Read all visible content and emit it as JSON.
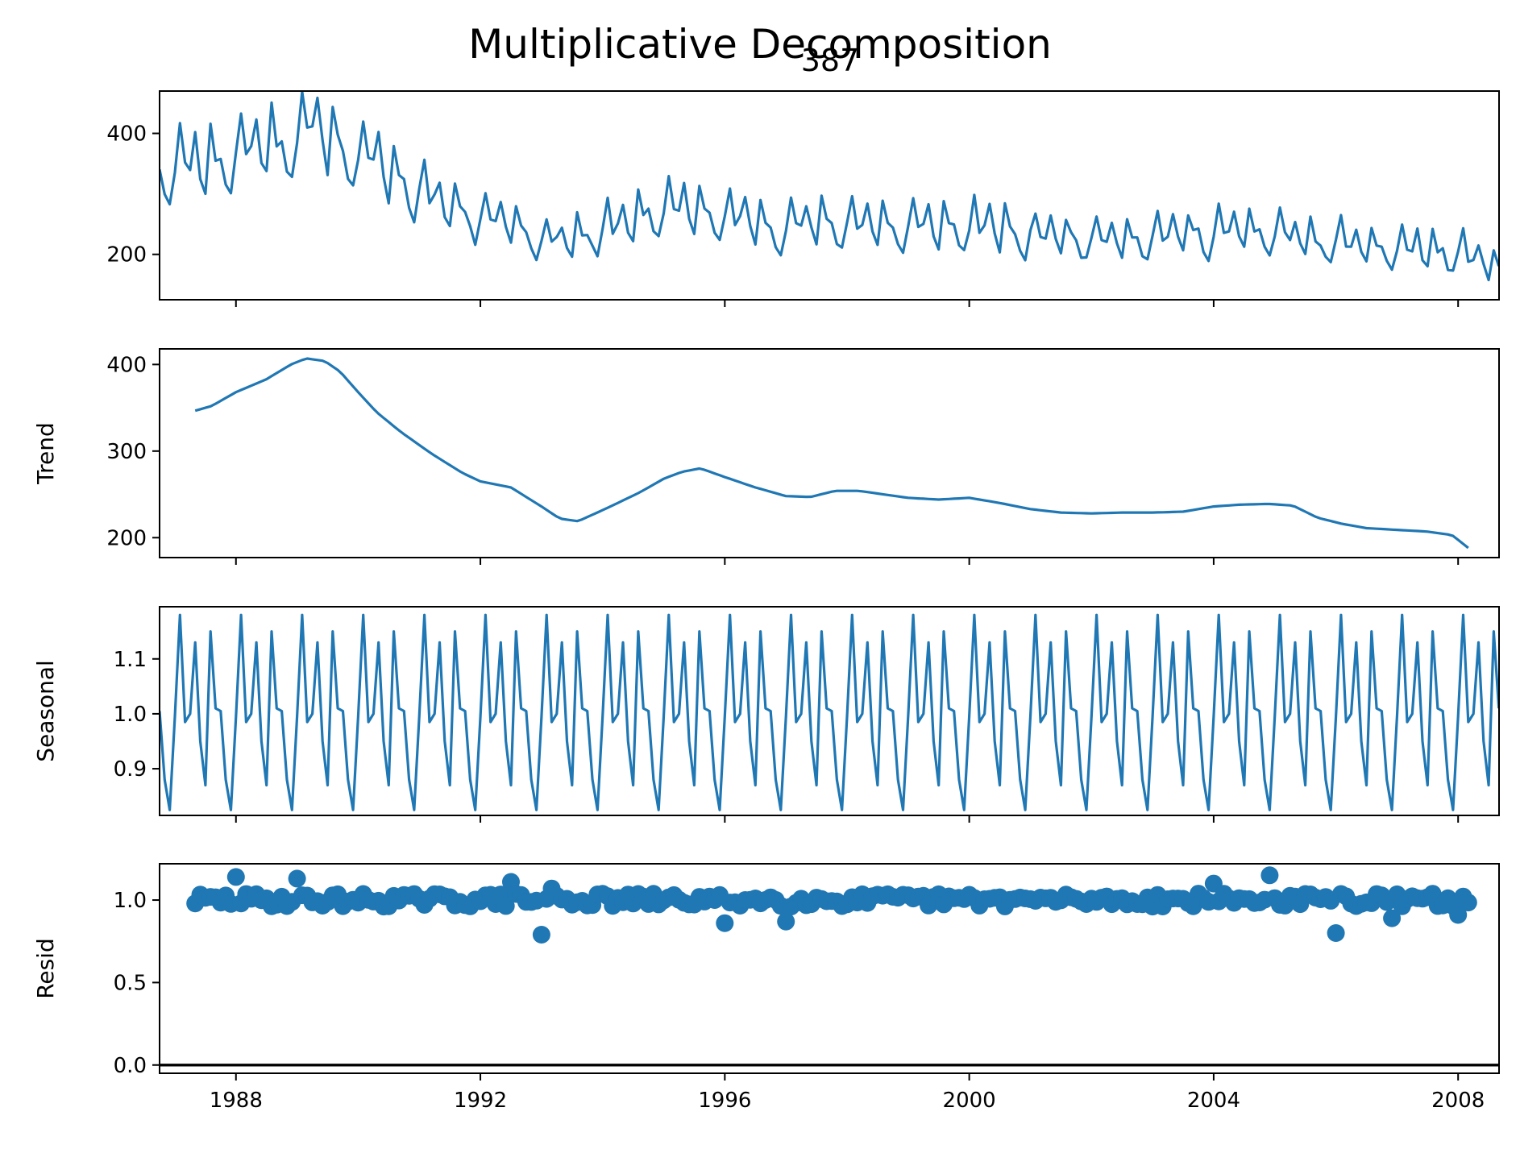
{
  "chart_data": {
    "type": "line",
    "title": "Multiplicative Decomposition",
    "subtitle": "387",
    "x_start": 1986.75,
    "x_step": 0.08333333,
    "n_points": 264,
    "xlim": [
      1986.75,
      2008.67
    ],
    "x_ticks": [
      1988,
      1992,
      1996,
      2000,
      2004,
      2008
    ],
    "x_tick_labels": [
      "1988",
      "1992",
      "1996",
      "2000",
      "2004",
      "2008"
    ],
    "color": "#1f77b4",
    "panels": [
      {
        "name": "observed",
        "ylabel": "",
        "ylim": [
          125,
          470
        ],
        "y_ticks": [
          200,
          400
        ],
        "y_tick_labels": [
          "200",
          "400"
        ],
        "trend_knots": [
          [
            1986.75,
            345
          ],
          [
            1987.5,
            352
          ],
          [
            1988.5,
            382
          ],
          [
            1989.2,
            405
          ],
          [
            1989.7,
            385
          ],
          [
            1990.5,
            335
          ],
          [
            1991.5,
            280
          ],
          [
            1992.5,
            252
          ],
          [
            1993.2,
            220
          ],
          [
            1994,
            240
          ],
          [
            1995.2,
            281
          ],
          [
            1996,
            262
          ],
          [
            1997,
            247
          ],
          [
            1998,
            254
          ],
          [
            1999,
            245
          ],
          [
            2000,
            248
          ],
          [
            2001,
            233
          ],
          [
            2002,
            228
          ],
          [
            2003,
            230
          ],
          [
            2004,
            238
          ],
          [
            2005,
            237
          ],
          [
            2005.6,
            222
          ],
          [
            2007,
            210
          ],
          [
            2008,
            203
          ],
          [
            2008.67,
            178
          ]
        ],
        "seasonal_factors": [
          1.005,
          0.88,
          0.825,
          0.995,
          1.18,
          0.985,
          1.0,
          1.13,
          0.95,
          0.87,
          1.15,
          1.01
        ],
        "noise_seed": 11,
        "noise_amp": 0.035
      },
      {
        "name": "trend",
        "ylabel": "Trend",
        "ylim": [
          177,
          418
        ],
        "y_ticks": [
          200,
          300,
          400
        ],
        "y_tick_labels": [
          "200",
          "300",
          "400"
        ],
        "x_range": [
          1987.25,
          2008.17
        ],
        "points": [
          [
            1987.25,
            345
          ],
          [
            1987.6,
            352
          ],
          [
            1988.0,
            368
          ],
          [
            1988.5,
            383
          ],
          [
            1988.9,
            400
          ],
          [
            1989.15,
            407
          ],
          [
            1989.45,
            404
          ],
          [
            1989.7,
            392
          ],
          [
            1990.0,
            368
          ],
          [
            1990.3,
            345
          ],
          [
            1990.7,
            322
          ],
          [
            1991.2,
            297
          ],
          [
            1991.7,
            275
          ],
          [
            1992.0,
            265
          ],
          [
            1992.5,
            258
          ],
          [
            1993.0,
            236
          ],
          [
            1993.3,
            222
          ],
          [
            1993.6,
            219
          ],
          [
            1994.1,
            235
          ],
          [
            1994.6,
            252
          ],
          [
            1995.0,
            268
          ],
          [
            1995.3,
            276
          ],
          [
            1995.6,
            280
          ],
          [
            1996.0,
            270
          ],
          [
            1996.5,
            258
          ],
          [
            1997.0,
            248
          ],
          [
            1997.4,
            247
          ],
          [
            1997.8,
            254
          ],
          [
            1998.2,
            254
          ],
          [
            1998.6,
            250
          ],
          [
            1999.0,
            246
          ],
          [
            1999.5,
            244
          ],
          [
            2000.0,
            246
          ],
          [
            2000.5,
            240
          ],
          [
            2001.0,
            233
          ],
          [
            2001.5,
            229
          ],
          [
            2002.0,
            228
          ],
          [
            2002.5,
            229
          ],
          [
            2003.0,
            229
          ],
          [
            2003.5,
            230
          ],
          [
            2004.0,
            236
          ],
          [
            2004.4,
            238
          ],
          [
            2004.9,
            239
          ],
          [
            2005.3,
            237
          ],
          [
            2005.7,
            223
          ],
          [
            2006.1,
            216
          ],
          [
            2006.5,
            211
          ],
          [
            2007.0,
            209
          ],
          [
            2007.5,
            207
          ],
          [
            2007.9,
            203
          ],
          [
            2008.17,
            188
          ]
        ]
      },
      {
        "name": "seasonal",
        "ylabel": "Seasonal",
        "ylim": [
          0.815,
          1.195
        ],
        "y_ticks": [
          0.9,
          1.0,
          1.1
        ],
        "y_tick_labels": [
          "0.9",
          "1.0",
          "1.1"
        ],
        "seasonal_factors": [
          1.005,
          0.88,
          0.825,
          0.995,
          1.18,
          0.985,
          1.0,
          1.13,
          0.95,
          0.87,
          1.15,
          1.01
        ]
      },
      {
        "name": "resid",
        "ylabel": "Resid",
        "ylim": [
          -0.05,
          1.22
        ],
        "y_ticks": [
          0.0,
          0.5,
          1.0
        ],
        "y_tick_labels": [
          "0.0",
          "0.5",
          "1.0"
        ],
        "x_range": [
          1987.25,
          2008.17
        ],
        "baseline": 0.0,
        "base": 1.0,
        "noise_amp": 0.04,
        "noise_seed": 29,
        "outliers": [
          [
            1988.0,
            1.14
          ],
          [
            1989.0,
            1.13
          ],
          [
            1992.5,
            1.11
          ],
          [
            1993.0,
            0.79
          ],
          [
            1993.2,
            1.07
          ],
          [
            1996.0,
            0.86
          ],
          [
            1997.0,
            0.87
          ],
          [
            2004.0,
            1.1
          ],
          [
            2004.9,
            1.15
          ],
          [
            2006.0,
            0.8
          ],
          [
            2006.9,
            0.89
          ],
          [
            2008.0,
            0.91
          ]
        ]
      }
    ]
  }
}
